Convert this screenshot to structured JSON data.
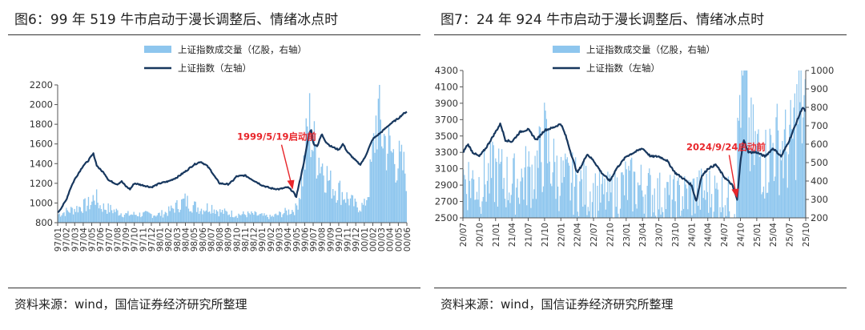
{
  "figures": [
    {
      "title": "图6：99 年 519 牛市启动于漫长调整后、情绪冰点时",
      "source": "资料来源：wind，国信证券经济研究所整理",
      "chart_data": {
        "type": "line+bar",
        "legend": {
          "position": "top",
          "volume_label": "上证指数成交量（亿股，右轴）",
          "index_label": "上证指数（左轴）"
        },
        "colors": {
          "index": "#17375e",
          "volume": "#8ec6ee",
          "annotation": "#e8262b"
        },
        "y_left": {
          "ticks": [
            800,
            1000,
            1200,
            1400,
            1600,
            1800,
            2000,
            2200
          ],
          "range": [
            800,
            2200
          ]
        },
        "y_right": {
          "ticks": [],
          "range": [
            0,
            50
          ]
        },
        "x_ticks": [
          "97/01",
          "97/02",
          "97/03",
          "97/04",
          "97/05",
          "97/06",
          "97/07",
          "97/08",
          "97/09",
          "97/10",
          "97/11",
          "97/12",
          "98/01",
          "98/02",
          "98/03",
          "98/04",
          "98/05",
          "98/06",
          "98/07",
          "98/08",
          "98/09",
          "98/10",
          "98/11",
          "98/12",
          "99/01",
          "99/02",
          "99/03",
          "99/04",
          "99/05",
          "99/06",
          "99/07",
          "99/08",
          "99/09",
          "99/10",
          "99/11",
          "99/12",
          "00/01",
          "00/02",
          "00/03",
          "00/04",
          "00/05",
          "00/06"
        ],
        "index_series": {
          "name": "上证指数（左轴）",
          "anchors": [
            [
              0,
              900
            ],
            [
              0.5,
              960
            ],
            [
              1,
              1030
            ],
            [
              1.5,
              1150
            ],
            [
              2,
              1240
            ],
            [
              3,
              1380
            ],
            [
              3.5,
              1420
            ],
            [
              4,
              1480
            ],
            [
              4.2,
              1500
            ],
            [
              4.6,
              1380
            ],
            [
              5,
              1340
            ],
            [
              5.5,
              1300
            ],
            [
              6,
              1230
            ],
            [
              7,
              1190
            ],
            [
              7.5,
              1220
            ],
            [
              8,
              1170
            ],
            [
              8.5,
              1140
            ],
            [
              9,
              1200
            ],
            [
              10,
              1180
            ],
            [
              11,
              1160
            ],
            [
              12,
              1200
            ],
            [
              13,
              1220
            ],
            [
              14,
              1260
            ],
            [
              15,
              1320
            ],
            [
              16,
              1390
            ],
            [
              16.8,
              1420
            ],
            [
              17.5,
              1380
            ],
            [
              18,
              1330
            ],
            [
              18.5,
              1260
            ],
            [
              19,
              1200
            ],
            [
              20,
              1190
            ],
            [
              20.5,
              1220
            ],
            [
              21,
              1270
            ],
            [
              22,
              1280
            ],
            [
              23,
              1230
            ],
            [
              24,
              1180
            ],
            [
              25,
              1150
            ],
            [
              26,
              1140
            ],
            [
              27,
              1160
            ],
            [
              27.6,
              1120
            ],
            [
              28,
              1060
            ],
            [
              28.5,
              1250
            ],
            [
              29,
              1450
            ],
            [
              29.5,
              1700
            ],
            [
              29.8,
              1750
            ],
            [
              30,
              1600
            ],
            [
              30.5,
              1580
            ],
            [
              31,
              1700
            ],
            [
              31.5,
              1620
            ],
            [
              32,
              1580
            ],
            [
              33,
              1540
            ],
            [
              33.5,
              1600
            ],
            [
              34,
              1520
            ],
            [
              35,
              1430
            ],
            [
              35.5,
              1390
            ],
            [
              36,
              1450
            ],
            [
              37,
              1650
            ],
            [
              38,
              1720
            ],
            [
              38.5,
              1760
            ],
            [
              39,
              1800
            ],
            [
              40,
              1860
            ],
            [
              40.5,
              1900
            ],
            [
              41,
              1930
            ],
            [
              41.5,
              1950
            ]
          ]
        },
        "volume_series": {
          "name": "上证指数成交量（亿股，右轴）",
          "anchors": [
            [
              0,
              3
            ],
            [
              1,
              4
            ],
            [
              2,
              5
            ],
            [
              3,
              6
            ],
            [
              4,
              7
            ],
            [
              4.3,
              10
            ],
            [
              5,
              6
            ],
            [
              6,
              5
            ],
            [
              8,
              3
            ],
            [
              10,
              3
            ],
            [
              12,
              3
            ],
            [
              13,
              4
            ],
            [
              14,
              6
            ],
            [
              15,
              8
            ],
            [
              16,
              6
            ],
            [
              17,
              5
            ],
            [
              18,
              6
            ],
            [
              19,
              4
            ],
            [
              21,
              3
            ],
            [
              23,
              3
            ],
            [
              25,
              2
            ],
            [
              27,
              4
            ],
            [
              28,
              5
            ],
            [
              28.5,
              12
            ],
            [
              29,
              22
            ],
            [
              29.5,
              38
            ],
            [
              30,
              28
            ],
            [
              31,
              22
            ],
            [
              32,
              14
            ],
            [
              33,
              12
            ],
            [
              34,
              9
            ],
            [
              35,
              6
            ],
            [
              36,
              6
            ],
            [
              36.5,
              12
            ],
            [
              37,
              24
            ],
            [
              37.5,
              40
            ],
            [
              38,
              33
            ],
            [
              39,
              26
            ],
            [
              40,
              22
            ],
            [
              41,
              18
            ],
            [
              41.5,
              16
            ]
          ]
        },
        "annotation": {
          "text": "1999/5/19启动前",
          "x": 27.6,
          "y": 1120
        }
      }
    },
    {
      "title": "图7：24 年 924 牛市启动于漫长调整后、情绪冰点时",
      "source": "资料来源：wind，国信证券经济研究所整理",
      "chart_data": {
        "type": "line+bar",
        "legend": {
          "position": "top",
          "volume_label": "上证指数成交量（亿股，右轴）",
          "index_label": "上证指数（左轴）"
        },
        "colors": {
          "index": "#17375e",
          "volume": "#8ec6ee",
          "annotation": "#e8262b"
        },
        "y_left": {
          "ticks": [
            2500,
            2700,
            2900,
            3100,
            3300,
            3500,
            3700,
            3900,
            4100,
            4300
          ],
          "range": [
            2500,
            4300
          ]
        },
        "y_right": {
          "ticks": [
            200,
            300,
            400,
            500,
            600,
            700,
            800,
            900,
            1000
          ],
          "range": [
            200,
            1000
          ]
        },
        "x_ticks": [
          "20/07",
          "20/10",
          "21/01",
          "21/04",
          "21/07",
          "21/10",
          "22/01",
          "22/04",
          "22/07",
          "22/10",
          "23/01",
          "23/04",
          "23/07",
          "23/10",
          "24/01",
          "24/04",
          "24/07",
          "24/10",
          "25/01",
          "25/04",
          "25/07",
          "25/10"
        ],
        "index_series": {
          "name": "上证指数（左轴）",
          "anchors": [
            [
              0,
              3300
            ],
            [
              0.3,
              3400
            ],
            [
              0.6,
              3300
            ],
            [
              1,
              3250
            ],
            [
              1.4,
              3350
            ],
            [
              2,
              3550
            ],
            [
              2.3,
              3650
            ],
            [
              2.6,
              3450
            ],
            [
              3,
              3430
            ],
            [
              3.5,
              3550
            ],
            [
              4,
              3580
            ],
            [
              4.5,
              3450
            ],
            [
              5,
              3570
            ],
            [
              5.5,
              3600
            ],
            [
              6,
              3650
            ],
            [
              6.3,
              3500
            ],
            [
              6.6,
              3300
            ],
            [
              7,
              3050
            ],
            [
              7.3,
              3150
            ],
            [
              7.6,
              3280
            ],
            [
              8,
              3200
            ],
            [
              8.5,
              3050
            ],
            [
              9,
              2950
            ],
            [
              9.4,
              3100
            ],
            [
              10,
              3250
            ],
            [
              10.5,
              3300
            ],
            [
              11,
              3350
            ],
            [
              11.5,
              3250
            ],
            [
              12,
              3250
            ],
            [
              12.5,
              3200
            ],
            [
              13,
              3050
            ],
            [
              13.5,
              2980
            ],
            [
              14,
              2900
            ],
            [
              14.3,
              2700
            ],
            [
              14.6,
              3000
            ],
            [
              15,
              3100
            ],
            [
              15.5,
              3150
            ],
            [
              16,
              3000
            ],
            [
              16.5,
              2900
            ],
            [
              16.8,
              2720
            ],
            [
              17,
              3200
            ],
            [
              17.2,
              3450
            ],
            [
              17.5,
              3300
            ],
            [
              18,
              3300
            ],
            [
              18.5,
              3250
            ],
            [
              19,
              3350
            ],
            [
              19.5,
              3250
            ],
            [
              20,
              3450
            ],
            [
              20.5,
              3700
            ],
            [
              20.8,
              3850
            ],
            [
              21,
              3800
            ],
            [
              21.3,
              3880
            ]
          ]
        },
        "volume_series": {
          "name": "上证指数成交量（亿股，右轴）",
          "anchors": [
            [
              0,
              420
            ],
            [
              1,
              380
            ],
            [
              2,
              440
            ],
            [
              3,
              380
            ],
            [
              4,
              430
            ],
            [
              4.6,
              470
            ],
            [
              5,
              600
            ],
            [
              5.5,
              480
            ],
            [
              6,
              400
            ],
            [
              7,
              380
            ],
            [
              8,
              330
            ],
            [
              9,
              310
            ],
            [
              10,
              380
            ],
            [
              11,
              360
            ],
            [
              12,
              320
            ],
            [
              13,
              300
            ],
            [
              14,
              330
            ],
            [
              15,
              340
            ],
            [
              16,
              320
            ],
            [
              16.7,
              260
            ],
            [
              17,
              950
            ],
            [
              17.3,
              850
            ],
            [
              17.6,
              600
            ],
            [
              18,
              560
            ],
            [
              18.6,
              500
            ],
            [
              19,
              600
            ],
            [
              20,
              560
            ],
            [
              20.6,
              800
            ],
            [
              21,
              760
            ],
            [
              21.3,
              700
            ]
          ]
        },
        "annotation": {
          "text": "2024/9/24启动前",
          "x": 16.8,
          "y": 2720
        }
      }
    }
  ]
}
